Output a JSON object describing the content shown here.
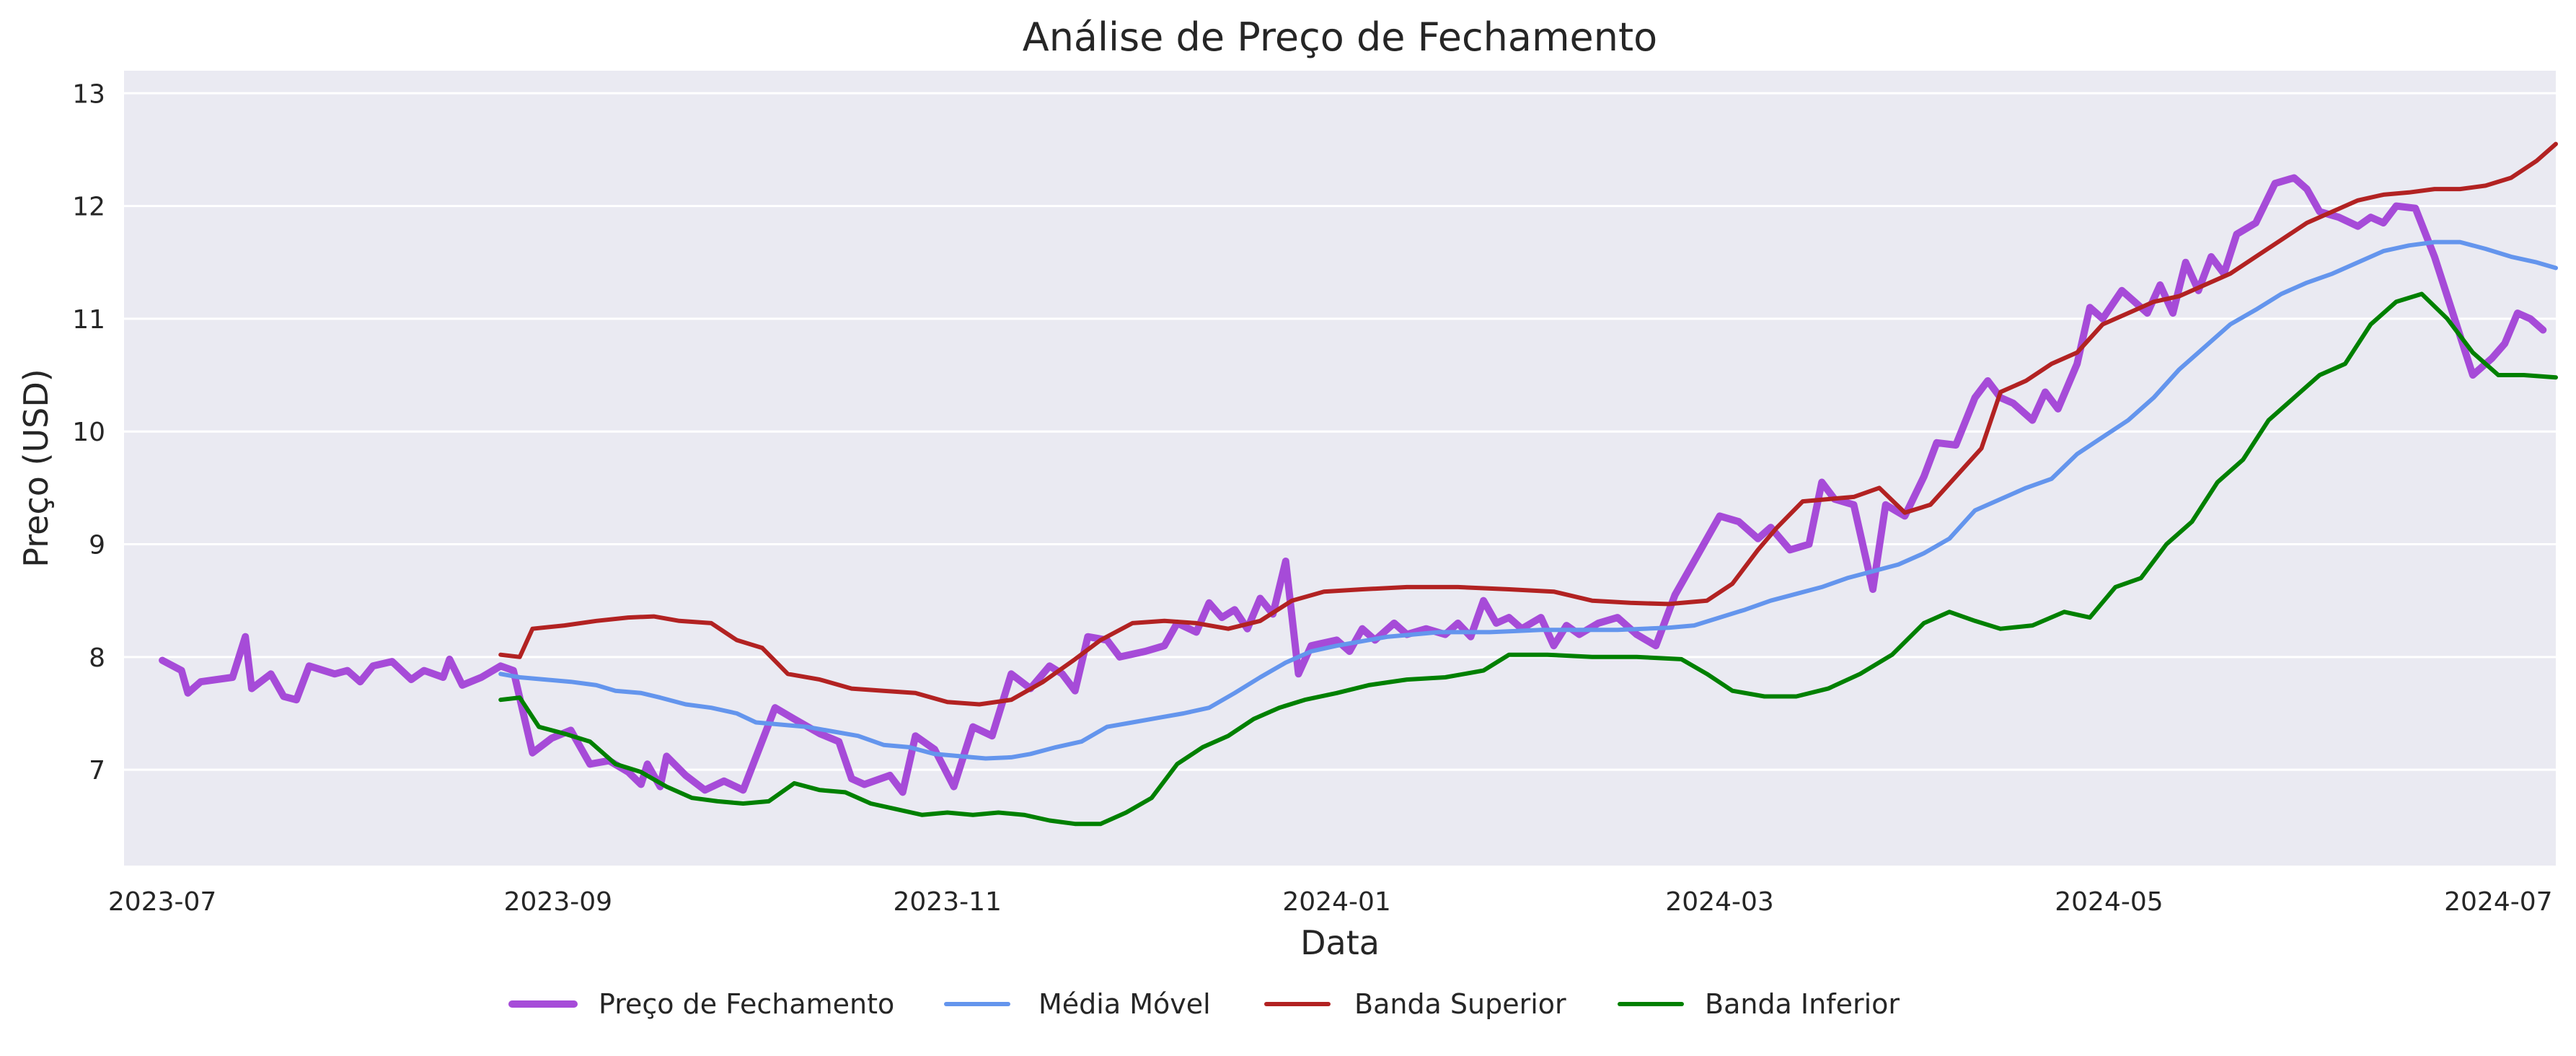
{
  "chart_data": {
    "type": "line",
    "title": "Análise de Preço de Fechamento",
    "xlabel": "Data",
    "ylabel": "Preço (USD)",
    "x_axis": {
      "type": "date",
      "range": [
        "2023-06-25",
        "2024-07-10"
      ],
      "ticks": [
        {
          "date": "2023-07-01",
          "label": "2023-07"
        },
        {
          "date": "2023-09-01",
          "label": "2023-09"
        },
        {
          "date": "2023-11-01",
          "label": "2023-11"
        },
        {
          "date": "2024-01-01",
          "label": "2024-01"
        },
        {
          "date": "2024-03-01",
          "label": "2024-03"
        },
        {
          "date": "2024-05-01",
          "label": "2024-05"
        },
        {
          "date": "2024-07-01",
          "label": "2024-07"
        }
      ]
    },
    "y_axis": {
      "range": [
        6.15,
        13.2
      ],
      "ticks": [
        7,
        8,
        9,
        10,
        11,
        12,
        13
      ]
    },
    "grid": true,
    "legend": "bottom-center",
    "series": [
      {
        "name": "Preço de Fechamento",
        "color": "#a64bd8",
        "stroke": "thick",
        "points": [
          [
            "2023-07-01",
            7.97
          ],
          [
            "2023-07-04",
            7.88
          ],
          [
            "2023-07-05",
            7.68
          ],
          [
            "2023-07-07",
            7.78
          ],
          [
            "2023-07-12",
            7.82
          ],
          [
            "2023-07-14",
            8.18
          ],
          [
            "2023-07-15",
            7.72
          ],
          [
            "2023-07-18",
            7.85
          ],
          [
            "2023-07-20",
            7.65
          ],
          [
            "2023-07-22",
            7.62
          ],
          [
            "2023-07-24",
            7.92
          ],
          [
            "2023-07-28",
            7.85
          ],
          [
            "2023-07-30",
            7.88
          ],
          [
            "2023-08-01",
            7.78
          ],
          [
            "2023-08-03",
            7.92
          ],
          [
            "2023-08-06",
            7.96
          ],
          [
            "2023-08-09",
            7.8
          ],
          [
            "2023-08-11",
            7.88
          ],
          [
            "2023-08-14",
            7.82
          ],
          [
            "2023-08-15",
            7.98
          ],
          [
            "2023-08-17",
            7.75
          ],
          [
            "2023-08-20",
            7.82
          ],
          [
            "2023-08-23",
            7.92
          ],
          [
            "2023-08-25",
            7.88
          ],
          [
            "2023-08-28",
            7.15
          ],
          [
            "2023-08-31",
            7.28
          ],
          [
            "2023-09-03",
            7.35
          ],
          [
            "2023-09-06",
            7.05
          ],
          [
            "2023-09-09",
            7.08
          ],
          [
            "2023-09-12",
            6.98
          ],
          [
            "2023-09-14",
            6.87
          ],
          [
            "2023-09-15",
            7.05
          ],
          [
            "2023-09-17",
            6.85
          ],
          [
            "2023-09-18",
            7.12
          ],
          [
            "2023-09-21",
            6.95
          ],
          [
            "2023-09-24",
            6.82
          ],
          [
            "2023-09-27",
            6.9
          ],
          [
            "2023-09-30",
            6.82
          ],
          [
            "2023-10-05",
            7.55
          ],
          [
            "2023-10-08",
            7.45
          ],
          [
            "2023-10-12",
            7.32
          ],
          [
            "2023-10-15",
            7.25
          ],
          [
            "2023-10-17",
            6.92
          ],
          [
            "2023-10-19",
            6.87
          ],
          [
            "2023-10-23",
            6.95
          ],
          [
            "2023-10-25",
            6.8
          ],
          [
            "2023-10-27",
            7.3
          ],
          [
            "2023-10-30",
            7.18
          ],
          [
            "2023-11-02",
            6.85
          ],
          [
            "2023-11-05",
            7.38
          ],
          [
            "2023-11-08",
            7.3
          ],
          [
            "2023-11-11",
            7.85
          ],
          [
            "2023-11-14",
            7.72
          ],
          [
            "2023-11-17",
            7.92
          ],
          [
            "2023-11-19",
            7.85
          ],
          [
            "2023-11-21",
            7.7
          ],
          [
            "2023-11-23",
            8.18
          ],
          [
            "2023-11-26",
            8.15
          ],
          [
            "2023-11-28",
            8.0
          ],
          [
            "2023-12-02",
            8.05
          ],
          [
            "2023-12-05",
            8.1
          ],
          [
            "2023-12-07",
            8.3
          ],
          [
            "2023-12-10",
            8.22
          ],
          [
            "2023-12-12",
            8.48
          ],
          [
            "2023-12-14",
            8.35
          ],
          [
            "2023-12-16",
            8.42
          ],
          [
            "2023-12-18",
            8.25
          ],
          [
            "2023-12-20",
            8.52
          ],
          [
            "2023-12-22",
            8.38
          ],
          [
            "2023-12-24",
            8.85
          ],
          [
            "2023-12-26",
            7.85
          ],
          [
            "2023-12-28",
            8.1
          ],
          [
            "2024-01-01",
            8.15
          ],
          [
            "2024-01-03",
            8.05
          ],
          [
            "2024-01-05",
            8.25
          ],
          [
            "2024-01-07",
            8.15
          ],
          [
            "2024-01-10",
            8.3
          ],
          [
            "2024-01-12",
            8.2
          ],
          [
            "2024-01-15",
            8.25
          ],
          [
            "2024-01-18",
            8.2
          ],
          [
            "2024-01-20",
            8.3
          ],
          [
            "2024-01-22",
            8.18
          ],
          [
            "2024-01-24",
            8.5
          ],
          [
            "2024-01-26",
            8.3
          ],
          [
            "2024-01-28",
            8.35
          ],
          [
            "2024-01-30",
            8.25
          ],
          [
            "2024-02-02",
            8.35
          ],
          [
            "2024-02-04",
            8.1
          ],
          [
            "2024-02-06",
            8.28
          ],
          [
            "2024-02-08",
            8.2
          ],
          [
            "2024-02-11",
            8.3
          ],
          [
            "2024-02-14",
            8.35
          ],
          [
            "2024-02-17",
            8.2
          ],
          [
            "2024-02-20",
            8.1
          ],
          [
            "2024-02-23",
            8.55
          ],
          [
            "2024-02-26",
            8.85
          ],
          [
            "2024-02-28",
            9.05
          ],
          [
            "2024-03-01",
            9.25
          ],
          [
            "2024-03-04",
            9.2
          ],
          [
            "2024-03-07",
            9.05
          ],
          [
            "2024-03-09",
            9.15
          ],
          [
            "2024-03-12",
            8.95
          ],
          [
            "2024-03-15",
            9.0
          ],
          [
            "2024-03-17",
            9.55
          ],
          [
            "2024-03-19",
            9.4
          ],
          [
            "2024-03-22",
            9.35
          ],
          [
            "2024-03-25",
            8.6
          ],
          [
            "2024-03-27",
            9.35
          ],
          [
            "2024-03-30",
            9.25
          ],
          [
            "2024-04-02",
            9.6
          ],
          [
            "2024-04-04",
            9.9
          ],
          [
            "2024-04-07",
            9.88
          ],
          [
            "2024-04-10",
            10.3
          ],
          [
            "2024-04-12",
            10.45
          ],
          [
            "2024-04-14",
            10.3
          ],
          [
            "2024-04-16",
            10.25
          ],
          [
            "2024-04-19",
            10.1
          ],
          [
            "2024-04-21",
            10.35
          ],
          [
            "2024-04-23",
            10.2
          ],
          [
            "2024-04-26",
            10.6
          ],
          [
            "2024-04-28",
            11.1
          ],
          [
            "2024-04-30",
            11.0
          ],
          [
            "2024-05-03",
            11.25
          ],
          [
            "2024-05-05",
            11.15
          ],
          [
            "2024-05-07",
            11.05
          ],
          [
            "2024-05-09",
            11.3
          ],
          [
            "2024-05-11",
            11.05
          ],
          [
            "2024-05-13",
            11.5
          ],
          [
            "2024-05-15",
            11.25
          ],
          [
            "2024-05-17",
            11.55
          ],
          [
            "2024-05-19",
            11.4
          ],
          [
            "2024-05-21",
            11.75
          ],
          [
            "2024-05-24",
            11.85
          ],
          [
            "2024-05-27",
            12.2
          ],
          [
            "2024-05-30",
            12.25
          ],
          [
            "2024-06-01",
            12.15
          ],
          [
            "2024-06-03",
            11.95
          ],
          [
            "2024-06-06",
            11.9
          ],
          [
            "2024-06-09",
            11.82
          ],
          [
            "2024-06-11",
            11.9
          ],
          [
            "2024-06-13",
            11.85
          ],
          [
            "2024-06-15",
            12.0
          ],
          [
            "2024-06-18",
            11.98
          ],
          [
            "2024-06-21",
            11.55
          ],
          [
            "2024-06-23",
            11.2
          ],
          [
            "2024-06-25",
            10.85
          ],
          [
            "2024-06-27",
            10.5
          ],
          [
            "2024-06-30",
            10.65
          ],
          [
            "2024-07-02",
            10.78
          ],
          [
            "2024-07-04",
            11.05
          ],
          [
            "2024-07-06",
            11.0
          ],
          [
            "2024-07-08",
            10.9
          ]
        ]
      },
      {
        "name": "Média Móvel",
        "color": "#6495ed",
        "stroke": "medium",
        "points": []
      },
      {
        "name": "Banda Superior",
        "color": "#b22222",
        "stroke": "medium",
        "points": []
      },
      {
        "name": "Banda Inferior",
        "color": "#008000",
        "stroke": "medium",
        "points": []
      }
    ]
  }
}
